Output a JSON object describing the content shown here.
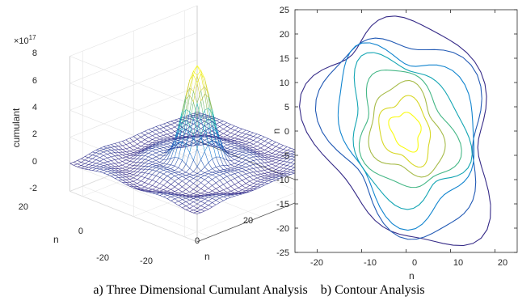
{
  "caption": "a) Three Dimensional Cumulant Analysis    b) Contour Analysis",
  "chart_data": [
    {
      "type": "surface",
      "title": "",
      "zlabel": "cumulant",
      "xlabel": "n",
      "ylabel": "n",
      "exponent_label": "×10",
      "exponent": "17",
      "zlim": [
        -2,
        8
      ],
      "zticks": [
        "8",
        "6",
        "4",
        "2",
        "0",
        "-2"
      ],
      "yticks": [
        "20",
        "0",
        "-20"
      ],
      "xticks": [
        "-20",
        "0",
        "20"
      ],
      "peak": {
        "x": 0,
        "y": 0,
        "z": 6.8
      },
      "grid": true,
      "colormap": "parula"
    },
    {
      "type": "contour",
      "title": "",
      "xlabel": "n",
      "ylabel": "n",
      "xlim": [
        -25,
        25
      ],
      "ylim": [
        -25,
        25
      ],
      "xticks": [
        "-20",
        "-10",
        "0",
        "10",
        "20"
      ],
      "yticks": [
        "25",
        "20",
        "15",
        "10",
        "5",
        "0",
        "-5",
        "-10",
        "-15",
        "-20",
        "-25"
      ],
      "levels": 8,
      "center": {
        "x": 0,
        "y": 0
      },
      "colormap": "parula",
      "colors": {
        "low": "#352a87",
        "mid": "#14b5a5",
        "high": "#f9fb0e"
      }
    }
  ]
}
